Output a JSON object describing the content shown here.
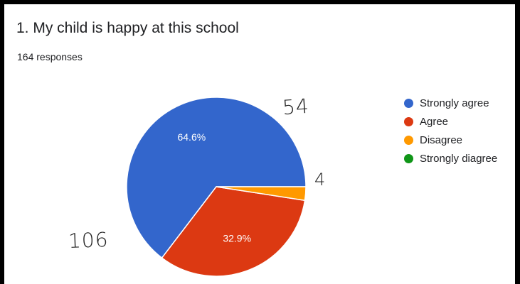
{
  "chart_data": {
    "type": "pie",
    "title": "1. My child is happy at this school",
    "subtitle": "164 responses",
    "categories": [
      "Strongly agree",
      "Agree",
      "Disagree",
      "Strongly diagree"
    ],
    "values": [
      106,
      54,
      4,
      0
    ],
    "percent_labels": [
      "64.6%",
      "32.9%",
      "",
      ""
    ],
    "colors": [
      "#3366cc",
      "#dc3912",
      "#ff9900",
      "#109618"
    ],
    "legend_position": "right"
  },
  "handwritten": {
    "agree_count": "54",
    "disagree_count": "4",
    "strongly_agree_count": "106"
  }
}
